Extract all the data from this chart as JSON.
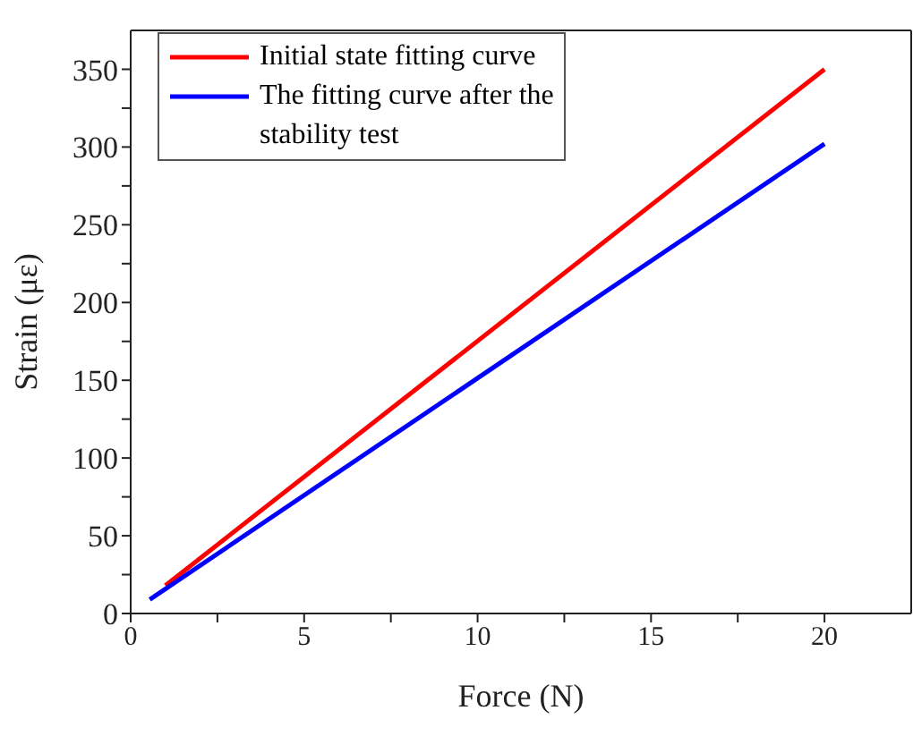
{
  "chart_data": {
    "type": "line",
    "xlabel": "Force (N)",
    "ylabel": "Strain (με)",
    "xlim": [
      0,
      22.5
    ],
    "ylim": [
      0,
      375
    ],
    "xticks": [
      0,
      {
        "value": 2.5,
        "label": null
      },
      5,
      {
        "value": 7.5,
        "label": null
      },
      10,
      {
        "value": 12.5,
        "label": null
      },
      15,
      {
        "value": 17.5,
        "label": null
      },
      20
    ],
    "yticks": [
      0,
      {
        "value": 25,
        "label": null
      },
      50,
      {
        "value": 75,
        "label": null
      },
      100,
      {
        "value": 125,
        "label": null
      },
      150,
      {
        "value": 175,
        "label": null
      },
      200,
      {
        "value": 225,
        "label": null
      },
      250,
      {
        "value": 275,
        "label": null
      },
      300,
      {
        "value": 325,
        "label": null
      },
      350
    ],
    "legend": "top left",
    "marker": "none",
    "line_style": "solid",
    "series": [
      {
        "name": "Initial state fitting curve",
        "color": "#ff0000",
        "x": [
          1,
          20
        ],
        "values": [
          18,
          350
        ]
      },
      {
        "name": "The fitting curve after the stability test",
        "color": "#0000ff",
        "x": [
          0.55,
          20
        ],
        "values": [
          9,
          302
        ]
      }
    ]
  }
}
